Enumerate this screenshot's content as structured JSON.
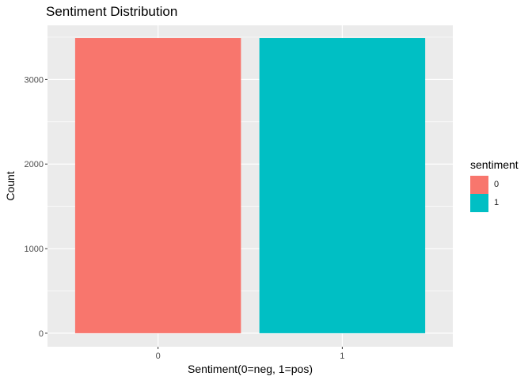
{
  "chart_data": {
    "type": "bar",
    "title": "Sentiment Distribution",
    "xlabel": "Sentiment(0=neg, 1=pos)",
    "ylabel": "Count",
    "categories": [
      "0",
      "1"
    ],
    "values": [
      3490,
      3490
    ],
    "ylim": [
      -160,
      3640
    ],
    "yticks": [
      0,
      1000,
      2000,
      3000
    ],
    "grid": true,
    "legend": {
      "title": "sentiment",
      "position": "right",
      "entries": [
        {
          "label": "0",
          "color": "#F8766D"
        },
        {
          "label": "1",
          "color": "#00BFC4"
        }
      ]
    },
    "colors": [
      "#F8766D",
      "#00BFC4"
    ],
    "panel_background": "#EBEBEB"
  }
}
